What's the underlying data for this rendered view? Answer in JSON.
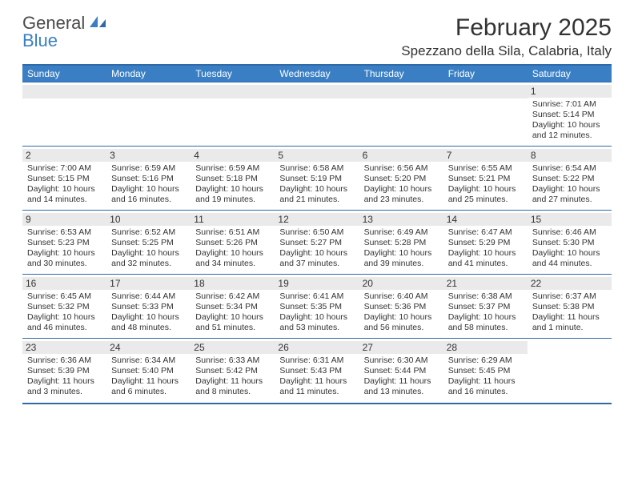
{
  "logo": {
    "top": "General",
    "bottom": "Blue"
  },
  "header": {
    "month": "February 2025",
    "location": "Spezzano della Sila, Calabria, Italy"
  },
  "colors": {
    "accent": "#3a7fc4",
    "border": "#2f6aa8",
    "daystrip": "#eaeaea",
    "text": "#333333",
    "bg": "#ffffff"
  },
  "daysOfWeek": [
    "Sunday",
    "Monday",
    "Tuesday",
    "Wednesday",
    "Thursday",
    "Friday",
    "Saturday"
  ],
  "calendar": {
    "type": "table",
    "columns": 7,
    "rows": 5,
    "first_weekday_index": 6,
    "cells": [
      [
        null,
        null,
        null,
        null,
        null,
        null,
        {
          "n": "1",
          "sr": "Sunrise: 7:01 AM",
          "ss": "Sunset: 5:14 PM",
          "d1": "Daylight: 10 hours",
          "d2": "and 12 minutes."
        }
      ],
      [
        {
          "n": "2",
          "sr": "Sunrise: 7:00 AM",
          "ss": "Sunset: 5:15 PM",
          "d1": "Daylight: 10 hours",
          "d2": "and 14 minutes."
        },
        {
          "n": "3",
          "sr": "Sunrise: 6:59 AM",
          "ss": "Sunset: 5:16 PM",
          "d1": "Daylight: 10 hours",
          "d2": "and 16 minutes."
        },
        {
          "n": "4",
          "sr": "Sunrise: 6:59 AM",
          "ss": "Sunset: 5:18 PM",
          "d1": "Daylight: 10 hours",
          "d2": "and 19 minutes."
        },
        {
          "n": "5",
          "sr": "Sunrise: 6:58 AM",
          "ss": "Sunset: 5:19 PM",
          "d1": "Daylight: 10 hours",
          "d2": "and 21 minutes."
        },
        {
          "n": "6",
          "sr": "Sunrise: 6:56 AM",
          "ss": "Sunset: 5:20 PM",
          "d1": "Daylight: 10 hours",
          "d2": "and 23 minutes."
        },
        {
          "n": "7",
          "sr": "Sunrise: 6:55 AM",
          "ss": "Sunset: 5:21 PM",
          "d1": "Daylight: 10 hours",
          "d2": "and 25 minutes."
        },
        {
          "n": "8",
          "sr": "Sunrise: 6:54 AM",
          "ss": "Sunset: 5:22 PM",
          "d1": "Daylight: 10 hours",
          "d2": "and 27 minutes."
        }
      ],
      [
        {
          "n": "9",
          "sr": "Sunrise: 6:53 AM",
          "ss": "Sunset: 5:23 PM",
          "d1": "Daylight: 10 hours",
          "d2": "and 30 minutes."
        },
        {
          "n": "10",
          "sr": "Sunrise: 6:52 AM",
          "ss": "Sunset: 5:25 PM",
          "d1": "Daylight: 10 hours",
          "d2": "and 32 minutes."
        },
        {
          "n": "11",
          "sr": "Sunrise: 6:51 AM",
          "ss": "Sunset: 5:26 PM",
          "d1": "Daylight: 10 hours",
          "d2": "and 34 minutes."
        },
        {
          "n": "12",
          "sr": "Sunrise: 6:50 AM",
          "ss": "Sunset: 5:27 PM",
          "d1": "Daylight: 10 hours",
          "d2": "and 37 minutes."
        },
        {
          "n": "13",
          "sr": "Sunrise: 6:49 AM",
          "ss": "Sunset: 5:28 PM",
          "d1": "Daylight: 10 hours",
          "d2": "and 39 minutes."
        },
        {
          "n": "14",
          "sr": "Sunrise: 6:47 AM",
          "ss": "Sunset: 5:29 PM",
          "d1": "Daylight: 10 hours",
          "d2": "and 41 minutes."
        },
        {
          "n": "15",
          "sr": "Sunrise: 6:46 AM",
          "ss": "Sunset: 5:30 PM",
          "d1": "Daylight: 10 hours",
          "d2": "and 44 minutes."
        }
      ],
      [
        {
          "n": "16",
          "sr": "Sunrise: 6:45 AM",
          "ss": "Sunset: 5:32 PM",
          "d1": "Daylight: 10 hours",
          "d2": "and 46 minutes."
        },
        {
          "n": "17",
          "sr": "Sunrise: 6:44 AM",
          "ss": "Sunset: 5:33 PM",
          "d1": "Daylight: 10 hours",
          "d2": "and 48 minutes."
        },
        {
          "n": "18",
          "sr": "Sunrise: 6:42 AM",
          "ss": "Sunset: 5:34 PM",
          "d1": "Daylight: 10 hours",
          "d2": "and 51 minutes."
        },
        {
          "n": "19",
          "sr": "Sunrise: 6:41 AM",
          "ss": "Sunset: 5:35 PM",
          "d1": "Daylight: 10 hours",
          "d2": "and 53 minutes."
        },
        {
          "n": "20",
          "sr": "Sunrise: 6:40 AM",
          "ss": "Sunset: 5:36 PM",
          "d1": "Daylight: 10 hours",
          "d2": "and 56 minutes."
        },
        {
          "n": "21",
          "sr": "Sunrise: 6:38 AM",
          "ss": "Sunset: 5:37 PM",
          "d1": "Daylight: 10 hours",
          "d2": "and 58 minutes."
        },
        {
          "n": "22",
          "sr": "Sunrise: 6:37 AM",
          "ss": "Sunset: 5:38 PM",
          "d1": "Daylight: 11 hours",
          "d2": "and 1 minute."
        }
      ],
      [
        {
          "n": "23",
          "sr": "Sunrise: 6:36 AM",
          "ss": "Sunset: 5:39 PM",
          "d1": "Daylight: 11 hours",
          "d2": "and 3 minutes."
        },
        {
          "n": "24",
          "sr": "Sunrise: 6:34 AM",
          "ss": "Sunset: 5:40 PM",
          "d1": "Daylight: 11 hours",
          "d2": "and 6 minutes."
        },
        {
          "n": "25",
          "sr": "Sunrise: 6:33 AM",
          "ss": "Sunset: 5:42 PM",
          "d1": "Daylight: 11 hours",
          "d2": "and 8 minutes."
        },
        {
          "n": "26",
          "sr": "Sunrise: 6:31 AM",
          "ss": "Sunset: 5:43 PM",
          "d1": "Daylight: 11 hours",
          "d2": "and 11 minutes."
        },
        {
          "n": "27",
          "sr": "Sunrise: 6:30 AM",
          "ss": "Sunset: 5:44 PM",
          "d1": "Daylight: 11 hours",
          "d2": "and 13 minutes."
        },
        {
          "n": "28",
          "sr": "Sunrise: 6:29 AM",
          "ss": "Sunset: 5:45 PM",
          "d1": "Daylight: 11 hours",
          "d2": "and 16 minutes."
        },
        null
      ]
    ]
  }
}
